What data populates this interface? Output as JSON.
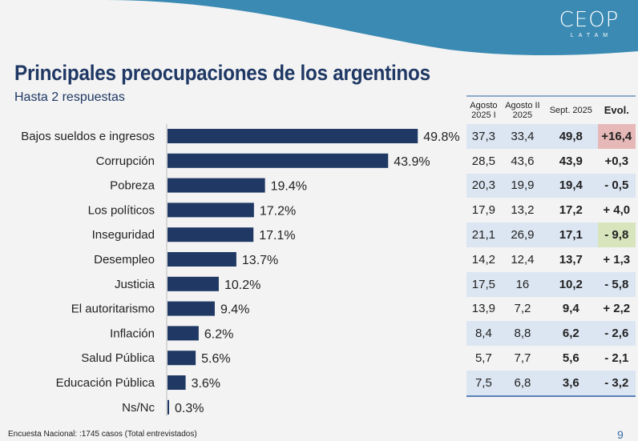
{
  "logo": {
    "main": "CEOP",
    "sub": "LATAM"
  },
  "title": "Principales preocupaciones de los argentinos",
  "subtitle": "Hasta 2 respuestas",
  "colors": {
    "bar": "#1f3864",
    "wave": "#3a8ab3",
    "evol_up": "#e6b8b7",
    "evol_down": "#d8e4bc",
    "row_alt": "#dce6f2"
  },
  "chart_data": {
    "type": "bar",
    "orientation": "horizontal",
    "categories": [
      "Bajos sueldos e ingresos",
      "Corrupción",
      "Pobreza",
      "Los políticos",
      "Inseguridad",
      "Desempleo",
      "Justicia",
      "El autoritarismo",
      "Inflación",
      "Salud Pública",
      "Educación Pública",
      "Ns/Nc"
    ],
    "values": [
      49.8,
      43.9,
      19.4,
      17.2,
      17.1,
      13.7,
      10.2,
      9.4,
      6.2,
      5.6,
      3.6,
      0.3
    ],
    "labels": [
      "49.8%",
      "43.9%",
      "19.4%",
      "17.2%",
      "17.1%",
      "13.7%",
      "10.2%",
      "9.4%",
      "6.2%",
      "5.6%",
      "3.6%",
      "0.3%"
    ],
    "unit": "%",
    "grid": false
  },
  "table": {
    "headers": [
      [
        "Agosto",
        "2025 I"
      ],
      [
        "Agosto II",
        "2025"
      ],
      [
        "Sept. 2025"
      ],
      [
        "Evol."
      ]
    ],
    "rows": [
      [
        "37,3",
        "33,4",
        "49,8",
        "+16,4"
      ],
      [
        "28,5",
        "43,6",
        "43,9",
        "+0,3"
      ],
      [
        "20,3",
        "19,9",
        "19,4",
        "- 0,5"
      ],
      [
        "17,9",
        "13,2",
        "17,2",
        "+ 4,0"
      ],
      [
        "21,1",
        "26,9",
        "17,1",
        "- 9,8"
      ],
      [
        "14,2",
        "12,4",
        "13,7",
        "+ 1,3"
      ],
      [
        "17,5",
        "16",
        "10,2",
        "- 5,8"
      ],
      [
        "13,9",
        "7,2",
        "9,4",
        "+ 2,2"
      ],
      [
        "8,4",
        "8,8",
        "6,2",
        "- 2,6"
      ],
      [
        "5,7",
        "7,7",
        "5,6",
        "- 2,1"
      ],
      [
        "7,5",
        "6,8",
        "3,6",
        "- 3,2"
      ]
    ],
    "highlights": {
      "0": "evol_up",
      "4": "evol_down"
    }
  },
  "footer": "Encuesta Nacional: :1745 casos (Total entrevistados)",
  "page_number": "9"
}
